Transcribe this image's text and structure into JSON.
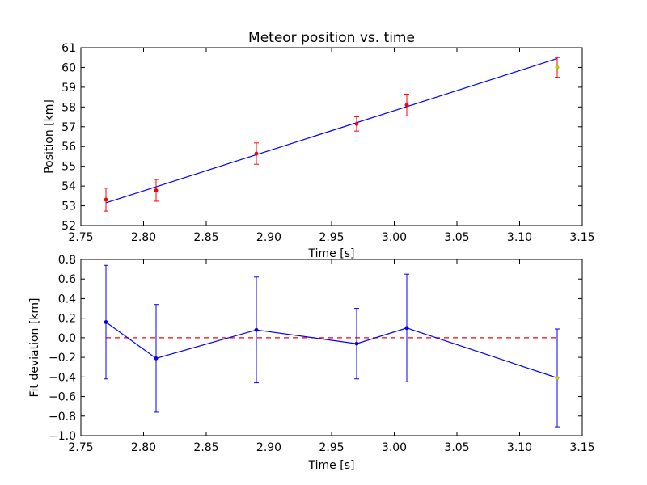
{
  "chart_data": [
    {
      "type": "scatter",
      "title": "Meteor position vs. time",
      "xlabel": "Time [s]",
      "ylabel": "Position [km]",
      "xlim": [
        2.75,
        3.15
      ],
      "ylim": [
        52,
        61
      ],
      "xticks": [
        "2.75",
        "2.80",
        "2.85",
        "2.90",
        "2.95",
        "3.00",
        "3.05",
        "3.10",
        "3.15"
      ],
      "yticks": [
        "52",
        "53",
        "54",
        "55",
        "56",
        "57",
        "58",
        "59",
        "60",
        "61"
      ],
      "grid": false,
      "colors": {
        "fit": "#0000ff",
        "points": "#ff0000",
        "errorbars": "#ff0000",
        "last_point": "#cccc00"
      },
      "series": [
        {
          "x": [
            2.77,
            2.81,
            2.89,
            2.97,
            3.01,
            3.13
          ],
          "y": [
            53.31,
            53.78,
            55.64,
            57.14,
            58.1,
            60.0
          ],
          "yerr": [
            0.58,
            0.55,
            0.54,
            0.36,
            0.55,
            0.5
          ]
        },
        {
          "x": [
            2.77,
            3.13
          ],
          "y": [
            53.15,
            60.45
          ]
        }
      ]
    },
    {
      "type": "line",
      "xlabel": "Time [s]",
      "ylabel": "Fit deviation [km]",
      "xlim": [
        2.75,
        3.15
      ],
      "ylim": [
        -1.0,
        0.8
      ],
      "xticks": [
        "2.75",
        "2.80",
        "2.85",
        "2.90",
        "2.95",
        "3.00",
        "3.05",
        "3.10",
        "3.15"
      ],
      "yticks": [
        "−1.0",
        "−0.8",
        "−0.6",
        "−0.4",
        "−0.2",
        "0.0",
        "0.2",
        "0.4",
        "0.6",
        "0.8"
      ],
      "grid": false,
      "colors": {
        "line": "#0000ff",
        "zero_line": "#ff0000",
        "last_point": "#cccc00"
      },
      "series": [
        {
          "x": [
            2.77,
            2.81,
            2.89,
            2.97,
            3.01,
            3.13
          ],
          "y": [
            0.16,
            -0.21,
            0.08,
            -0.06,
            0.1,
            -0.41
          ],
          "yerr": [
            0.58,
            0.55,
            0.54,
            0.36,
            0.55,
            0.5
          ]
        }
      ],
      "reference_line_y": 0.0
    }
  ]
}
